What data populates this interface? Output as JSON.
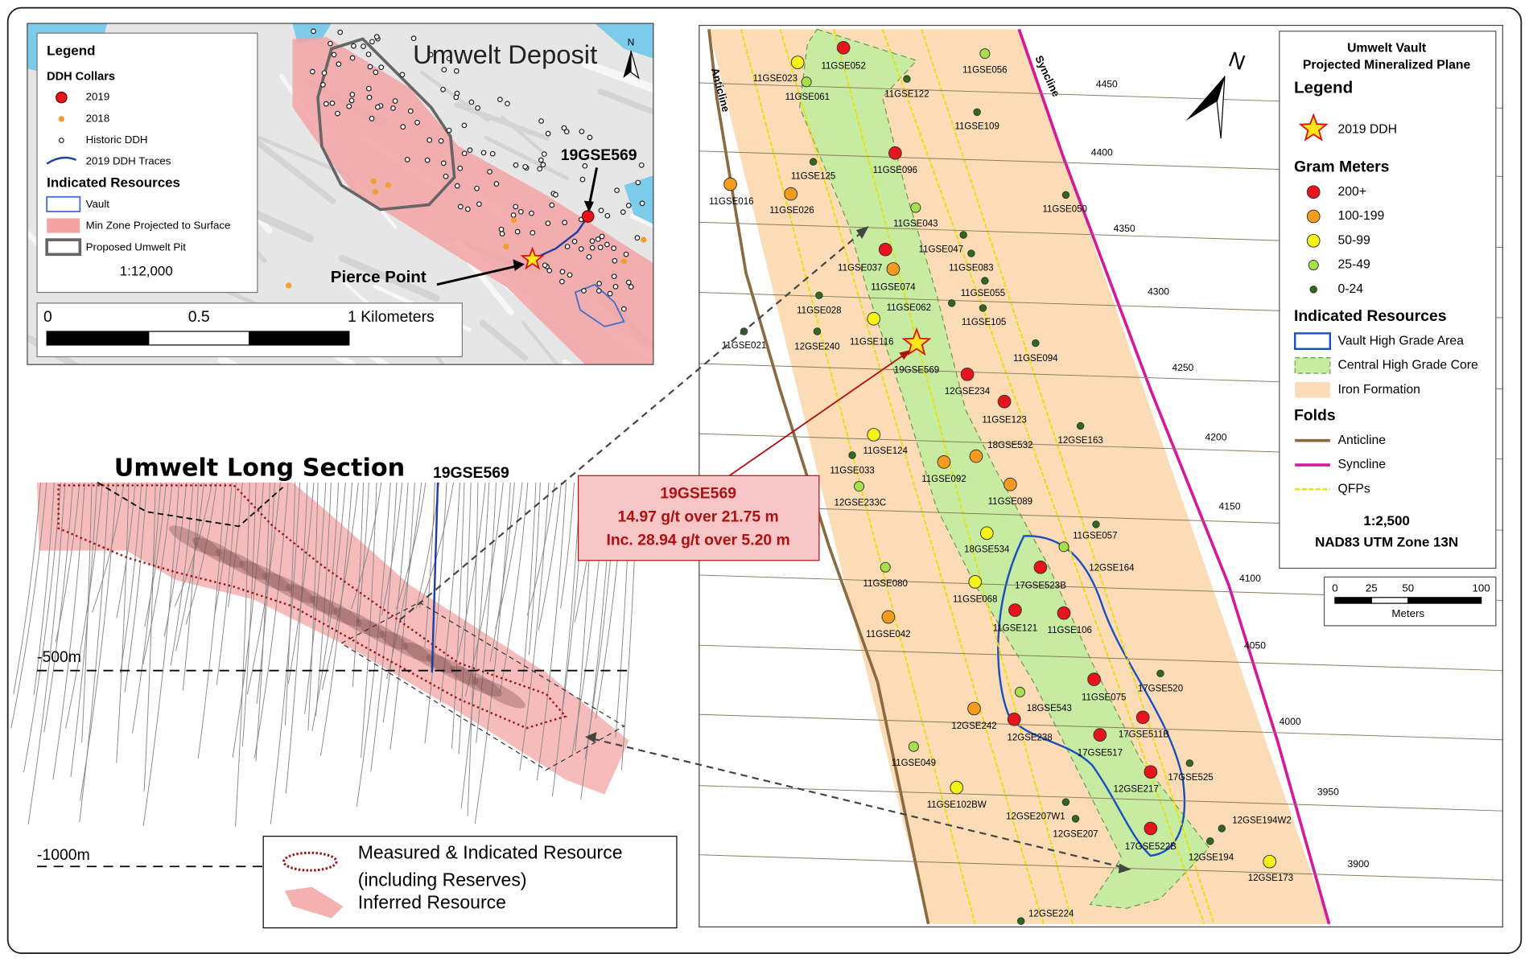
{
  "deposit_map": {
    "title": "Umwelt Deposit",
    "north": "N",
    "legend": {
      "title": "Legend",
      "collars_heading": "DDH Collars",
      "collars": [
        "2019",
        "2018",
        "Historic DDH",
        "2019 DDH Traces"
      ],
      "resources_heading": "Indicated Resources",
      "resources": [
        "Vault",
        "Min Zone Projected to Surface",
        "Proposed Umwelt Pit"
      ],
      "scale": "1:12,000"
    },
    "hole_label": "19GSE569",
    "pierce_label": "Pierce Point",
    "scalebar": [
      "0",
      "0.5",
      "1 Kilometers"
    ]
  },
  "long_section": {
    "title": "Umwelt Long Section",
    "hole_label": "19GSE569",
    "depths": [
      "-500m",
      "-1000m"
    ],
    "legend": [
      "Measured & Indicated Resource",
      "(including Reserves)",
      "Inferred Resource"
    ]
  },
  "callout": {
    "hole": "19GSE569",
    "lines": [
      "14.97 g/t over 21.75 m",
      "Inc. 28.94 g/t over 5.20 m"
    ]
  },
  "vault_map": {
    "title": [
      "Umwelt Vault",
      "Projected Mineralized Plane"
    ],
    "legend_title": "Legend",
    "ddh_2019": "2019 DDH",
    "grade_heading": "Gram Meters",
    "grades": [
      {
        "label": "200+",
        "color": "#e8141c"
      },
      {
        "label": "100-199",
        "color": "#f39c1e"
      },
      {
        "label": "50-99",
        "color": "#f5f21a"
      },
      {
        "label": "25-49",
        "color": "#a6e04a"
      },
      {
        "label": "0-24",
        "color": "#2e6b1e"
      }
    ],
    "resources_heading": "Indicated Resources",
    "resources": [
      "Vault High Grade Area",
      "Central High Grade Core",
      "Iron Formation"
    ],
    "folds_heading": "Folds",
    "folds": [
      "Anticline",
      "Syncline",
      "QFPs"
    ],
    "scale": "1:2,500",
    "datum": "NAD83 UTM Zone 13N",
    "scalebar": {
      "ticks": [
        0,
        25,
        50,
        100
      ],
      "unit": "Meters"
    },
    "anticline_label": "Anticline",
    "syncline_label": "Syncline",
    "north": "N",
    "elevations": [
      4450,
      4400,
      4350,
      4300,
      4250,
      4200,
      4150,
      4100,
      4050,
      4000,
      3950,
      3900
    ],
    "star_hole": "19GSE569",
    "holes": [
      {
        "label": "11GSE052",
        "grade": "200+"
      },
      {
        "label": "11GSE023",
        "grade": "50-99"
      },
      {
        "label": "11GSE056",
        "grade": "25-49"
      },
      {
        "label": "11GSE061",
        "grade": "25-49"
      },
      {
        "label": "11GSE122",
        "grade": "0-24"
      },
      {
        "label": "11GSE109",
        "grade": "0-24"
      },
      {
        "label": "11GSE096",
        "grade": "200+"
      },
      {
        "label": "11GSE125",
        "grade": "0-24"
      },
      {
        "label": "11GSE016",
        "grade": "100-199"
      },
      {
        "label": "11GSE026",
        "grade": "100-199"
      },
      {
        "label": "11GSE050",
        "grade": "0-24"
      },
      {
        "label": "11GSE043",
        "grade": "25-49"
      },
      {
        "label": "11GSE047",
        "grade": "0-24"
      },
      {
        "label": "11GSE083",
        "grade": "0-24"
      },
      {
        "label": "11GSE037",
        "grade": "200+"
      },
      {
        "label": "11GSE074",
        "grade": "100-199"
      },
      {
        "label": "11GSE055",
        "grade": "0-24"
      },
      {
        "label": "11GSE028",
        "grade": "0-24"
      },
      {
        "label": "11GSE062",
        "grade": "0-24"
      },
      {
        "label": "11GSE105",
        "grade": "0-24"
      },
      {
        "label": "11GSE116",
        "grade": "50-99"
      },
      {
        "label": "12GSE240",
        "grade": "0-24"
      },
      {
        "label": "11GSE021",
        "grade": "0-24"
      },
      {
        "label": "11GSE094",
        "grade": "0-24"
      },
      {
        "label": "12GSE234",
        "grade": "200+"
      },
      {
        "label": "11GSE123",
        "grade": "200+"
      },
      {
        "label": "12GSE163",
        "grade": "0-24"
      },
      {
        "label": "11GSE124",
        "grade": "50-99"
      },
      {
        "label": "18GSE532",
        "grade": "100-199"
      },
      {
        "label": "11GSE033",
        "grade": "0-24"
      },
      {
        "label": "11GSE092",
        "grade": "100-199"
      },
      {
        "label": "12GSE233C",
        "grade": "25-49"
      },
      {
        "label": "11GSE089",
        "grade": "100-199"
      },
      {
        "label": "18GSE534",
        "grade": "50-99"
      },
      {
        "label": "11GSE057",
        "grade": "0-24"
      },
      {
        "label": "12GSE164",
        "grade": "25-49"
      },
      {
        "label": "17GSE523B",
        "grade": "200+"
      },
      {
        "label": "11GSE080",
        "grade": "25-49"
      },
      {
        "label": "11GSE068",
        "grade": "50-99"
      },
      {
        "label": "11GSE121",
        "grade": "200+"
      },
      {
        "label": "11GSE106",
        "grade": "200+"
      },
      {
        "label": "11GSE042",
        "grade": "100-199"
      },
      {
        "label": "17GSE520",
        "grade": "0-24"
      },
      {
        "label": "11GSE075",
        "grade": "200+"
      },
      {
        "label": "18GSE543",
        "grade": "25-49"
      },
      {
        "label": "12GSE242",
        "grade": "100-199"
      },
      {
        "label": "12GSE238",
        "grade": "200+"
      },
      {
        "label": "17GSE511B",
        "grade": "200+"
      },
      {
        "label": "17GSE517",
        "grade": "200+"
      },
      {
        "label": "11GSE049",
        "grade": "25-49"
      },
      {
        "label": "17GSE525",
        "grade": "0-24"
      },
      {
        "label": "12GSE217",
        "grade": "200+"
      },
      {
        "label": "11GSE102BW",
        "grade": "50-99"
      },
      {
        "label": "12GSE207W1",
        "grade": "0-24"
      },
      {
        "label": "12GSE207",
        "grade": "0-24"
      },
      {
        "label": "12GSE194W2",
        "grade": "0-24"
      },
      {
        "label": "17GSE522B",
        "grade": "200+"
      },
      {
        "label": "12GSE194",
        "grade": "0-24"
      },
      {
        "label": "12GSE173",
        "grade": "50-99"
      },
      {
        "label": "12GSE224",
        "grade": "0-24"
      }
    ]
  }
}
